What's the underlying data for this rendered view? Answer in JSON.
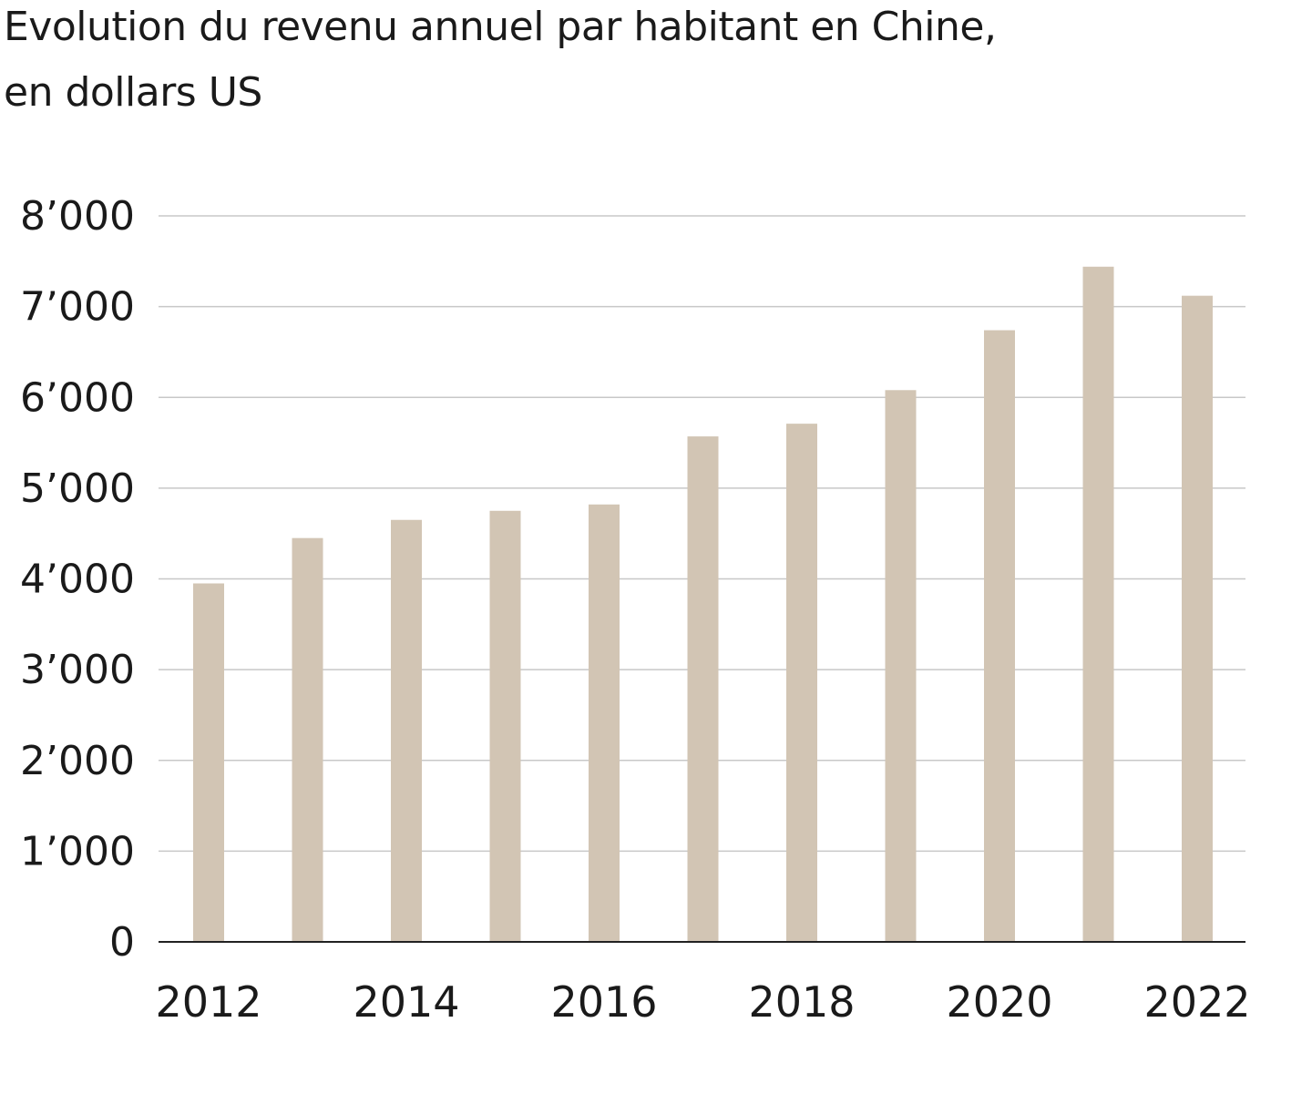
{
  "chart_data": {
    "type": "bar",
    "title_lines": [
      "Evolution du revenu annuel par habitant en Chine,",
      "en dollars US"
    ],
    "title": "Evolution du revenu annuel par habitant en Chine, en dollars US",
    "xlabel": "",
    "ylabel": "",
    "categories": [
      "2012",
      "2013",
      "2014",
      "2015",
      "2016",
      "2017",
      "2018",
      "2019",
      "2020",
      "2021",
      "2022"
    ],
    "values": [
      3950,
      4450,
      4650,
      4750,
      4820,
      5570,
      5710,
      6080,
      6740,
      7440,
      7120
    ],
    "x_tick_labels": [
      "2012",
      "2014",
      "2016",
      "2018",
      "2020",
      "2022"
    ],
    "y_ticks": [
      0,
      1000,
      2000,
      3000,
      4000,
      5000,
      6000,
      7000,
      8000
    ],
    "y_tick_labels": [
      "0",
      "1’000",
      "2’000",
      "3’000",
      "4’000",
      "5’000",
      "6’000",
      "7’000",
      "8’000"
    ],
    "ylim": [
      0,
      8000
    ],
    "grid": true,
    "legend": "none",
    "colors": {
      "bar": "#d2c5b4",
      "grid": "#c8c8c8",
      "axis": "#222222"
    }
  }
}
